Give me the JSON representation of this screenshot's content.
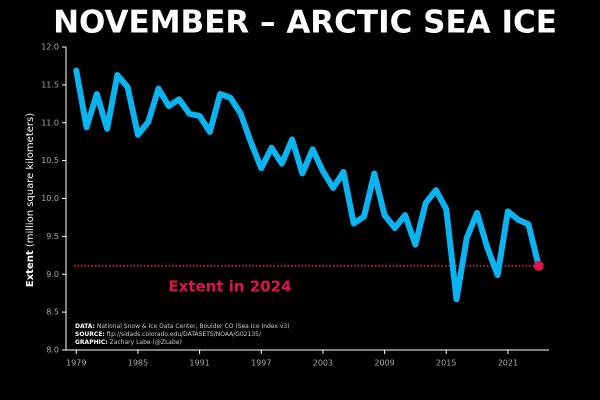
{
  "chart_data": {
    "type": "line",
    "title": "NOVEMBER – ARCTIC SEA ICE",
    "ylabel_bold": "Extent",
    "ylabel": "(million square kilometers)",
    "annotation": "Extent in 2024",
    "credits": [
      {
        "label": "DATA:",
        "text": "National Snow & Ice Data Center, Boulder CO (Sea Ice Index v3)"
      },
      {
        "label": "SOURCE:",
        "text": "ftp://sidads.colorado.edu/DATASETS/NOAA/G02135/"
      },
      {
        "label": "GRAPHIC:",
        "text": "Zachary Labe (@ZLabe)"
      }
    ],
    "x": [
      1979,
      1980,
      1981,
      1982,
      1983,
      1984,
      1985,
      1986,
      1987,
      1988,
      1989,
      1990,
      1991,
      1992,
      1993,
      1994,
      1995,
      1996,
      1997,
      1998,
      1999,
      2000,
      2001,
      2002,
      2003,
      2004,
      2005,
      2006,
      2007,
      2008,
      2009,
      2010,
      2011,
      2012,
      2013,
      2014,
      2015,
      2016,
      2017,
      2018,
      2019,
      2020,
      2021,
      2022,
      2023,
      2024
    ],
    "series": [
      {
        "color": "#0ab4f0",
        "values": [
          11.69,
          10.94,
          11.38,
          10.92,
          11.63,
          11.47,
          10.84,
          11.01,
          11.45,
          11.22,
          11.31,
          11.12,
          11.09,
          10.88,
          11.38,
          11.33,
          11.12,
          10.74,
          10.4,
          10.67,
          10.46,
          10.78,
          10.33,
          10.65,
          10.36,
          10.14,
          10.35,
          9.67,
          9.76,
          10.33,
          9.78,
          9.61,
          9.78,
          9.39,
          9.94,
          10.11,
          9.86,
          8.67,
          9.48,
          9.81,
          9.35,
          8.99,
          9.83,
          9.72,
          9.66,
          9.11
        ]
      }
    ],
    "highlight_color": "#e0144c",
    "xlim": [
      1978,
      2025
    ],
    "xticks": [
      1979,
      1985,
      1991,
      1997,
      2003,
      2009,
      2015,
      2021
    ],
    "ylim": [
      8.0,
      12.0
    ],
    "yticks": [
      {
        "value": 8.0,
        "label": "8.0"
      },
      8.5,
      {
        "value": 9.0,
        "label": "9.0"
      },
      9.5,
      {
        "value": 10.0,
        "label": "10.0"
      },
      10.5,
      {
        "value": 11.0,
        "label": "11.0"
      },
      11.5,
      {
        "value": 12.0,
        "label": "12.0"
      }
    ]
  }
}
